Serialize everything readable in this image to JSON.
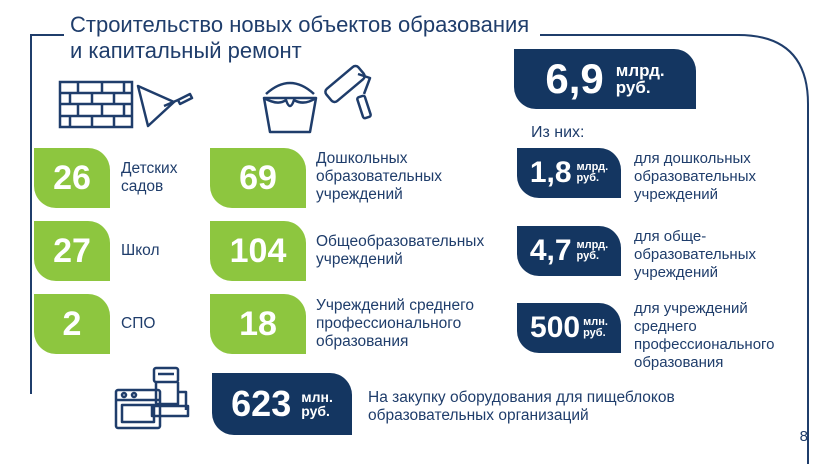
{
  "title_line1": "Строительство новых объектов образования",
  "title_line2": "и капитальный ремонт",
  "total": {
    "value": "6,9",
    "unit1": "млрд.",
    "unit2": "руб."
  },
  "of_which": "Из них:",
  "left": [
    {
      "value": "26",
      "label1": "Детских",
      "label2": "садов"
    },
    {
      "value": "27",
      "label1": "Школ"
    },
    {
      "value": "2",
      "label1": "СПО"
    }
  ],
  "middle": [
    {
      "value": "69",
      "label1": "Дошкольных",
      "label2": "образовательных",
      "label3": "учреждений"
    },
    {
      "value": "104",
      "label1": "Общеобразовательных",
      "label2": "учреждений"
    },
    {
      "value": "18",
      "label1": "Учреждений среднего",
      "label2": "профессионального",
      "label3": "образования"
    }
  ],
  "right": [
    {
      "value": "1,8",
      "unit1": "млрд.",
      "unit2": "руб.",
      "label1": "для дошкольных",
      "label2": "образовательных",
      "label3": "учреждений"
    },
    {
      "value": "4,7",
      "unit1": "млрд.",
      "unit2": "руб.",
      "label1": "для обще-",
      "label2": "образовательных",
      "label3": "учреждений"
    },
    {
      "value": "500",
      "unit1": "млн.",
      "unit2": "руб.",
      "label1": "для учреждений",
      "label2": "среднего",
      "label3": "профессионального",
      "label4": "образования"
    }
  ],
  "equipment": {
    "value": "623",
    "unit1": "млн.",
    "unit2": "руб.",
    "label1": "На закупку оборудования для пищеблоков",
    "label2": "образовательных организаций"
  },
  "page_number": "8",
  "icons": [
    "brick-wall-icon",
    "trowel-icon",
    "paint-bucket-icon",
    "paint-roller-icon",
    "meat-grinder-icon",
    "oven-icon"
  ],
  "colors": {
    "navy": "#143661",
    "green": "#8dc63f",
    "text": "#1f3d6b"
  }
}
